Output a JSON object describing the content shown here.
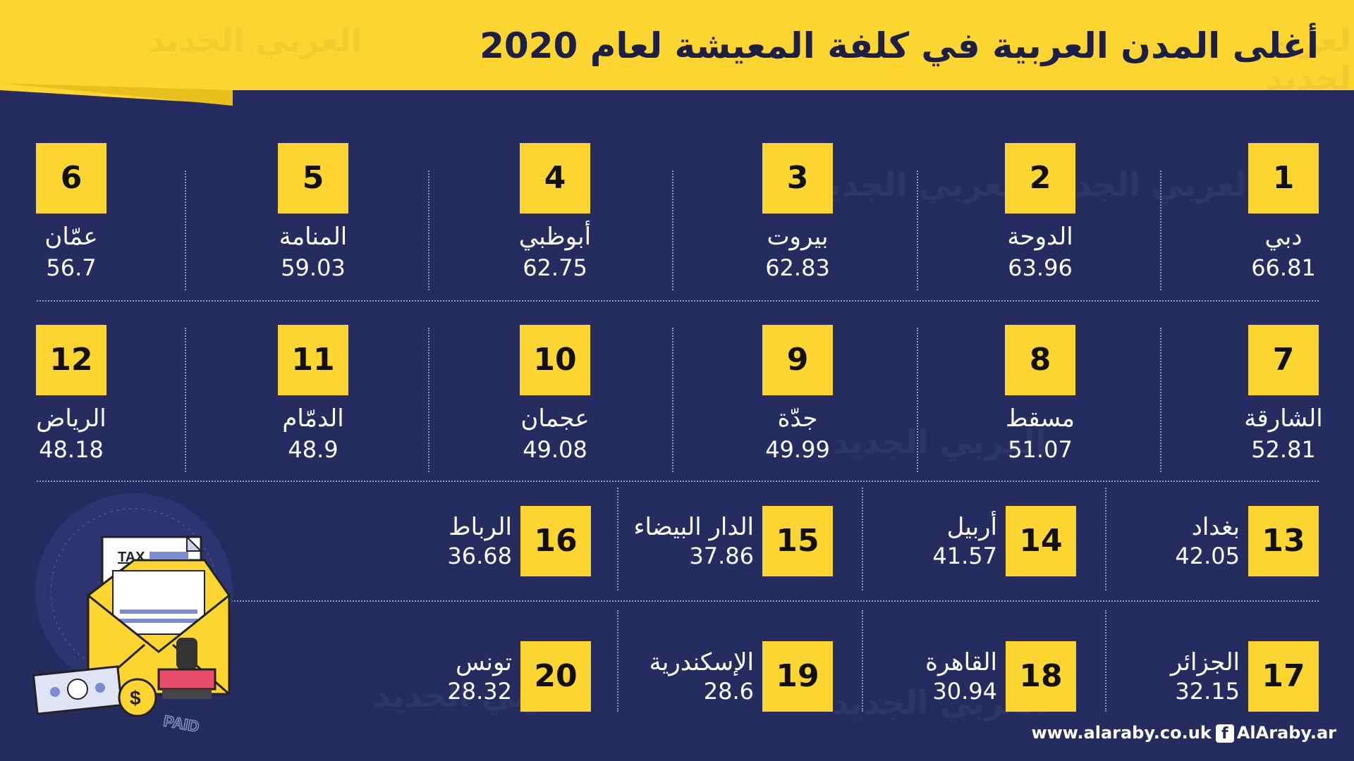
{
  "header": {
    "title": "أغلى المدن العربية في كلفة المعيشة لعام 2020",
    "brand_logo": "العربي الجديد"
  },
  "rankings": [
    {
      "rank": "1",
      "city": "دبي",
      "value": "66.81"
    },
    {
      "rank": "2",
      "city": "الدوحة",
      "value": "63.96"
    },
    {
      "rank": "3",
      "city": "بيروت",
      "value": "62.83"
    },
    {
      "rank": "4",
      "city": "أبوظبي",
      "value": "62.75"
    },
    {
      "rank": "5",
      "city": "المنامة",
      "value": "59.03"
    },
    {
      "rank": "6",
      "city": "عمّان",
      "value": "56.7"
    },
    {
      "rank": "7",
      "city": "الشارقة",
      "value": "52.81"
    },
    {
      "rank": "8",
      "city": "مسقط",
      "value": "51.07"
    },
    {
      "rank": "9",
      "city": "جدّة",
      "value": "49.99"
    },
    {
      "rank": "10",
      "city": "عجمان",
      "value": "49.08"
    },
    {
      "rank": "11",
      "city": "الدمّام",
      "value": "48.9"
    },
    {
      "rank": "12",
      "city": "الرياض",
      "value": "48.18"
    },
    {
      "rank": "13",
      "city": "بغداد",
      "value": "42.05"
    },
    {
      "rank": "14",
      "city": "أربيل",
      "value": "41.57"
    },
    {
      "rank": "15",
      "city": "الدار البيضاء",
      "value": "37.86"
    },
    {
      "rank": "16",
      "city": "الرباط",
      "value": "36.68"
    },
    {
      "rank": "17",
      "city": "الجزائر",
      "value": "32.15"
    },
    {
      "rank": "18",
      "city": "القاهرة",
      "value": "30.94"
    },
    {
      "rank": "19",
      "city": "الإسكندرية",
      "value": "28.6"
    },
    {
      "rank": "20",
      "city": "تونس",
      "value": "28.32"
    }
  ],
  "illustration": {
    "tax_label": "TAX",
    "paid_label": "PAID",
    "currency_symbol": "$"
  },
  "footer": {
    "website": "www.alaraby.co.uk",
    "facebook_icon": "f",
    "social_handle": "AlAraby.ar"
  },
  "colors": {
    "background": "#262c60",
    "accent": "#fdd531",
    "text": "#ffffff"
  }
}
